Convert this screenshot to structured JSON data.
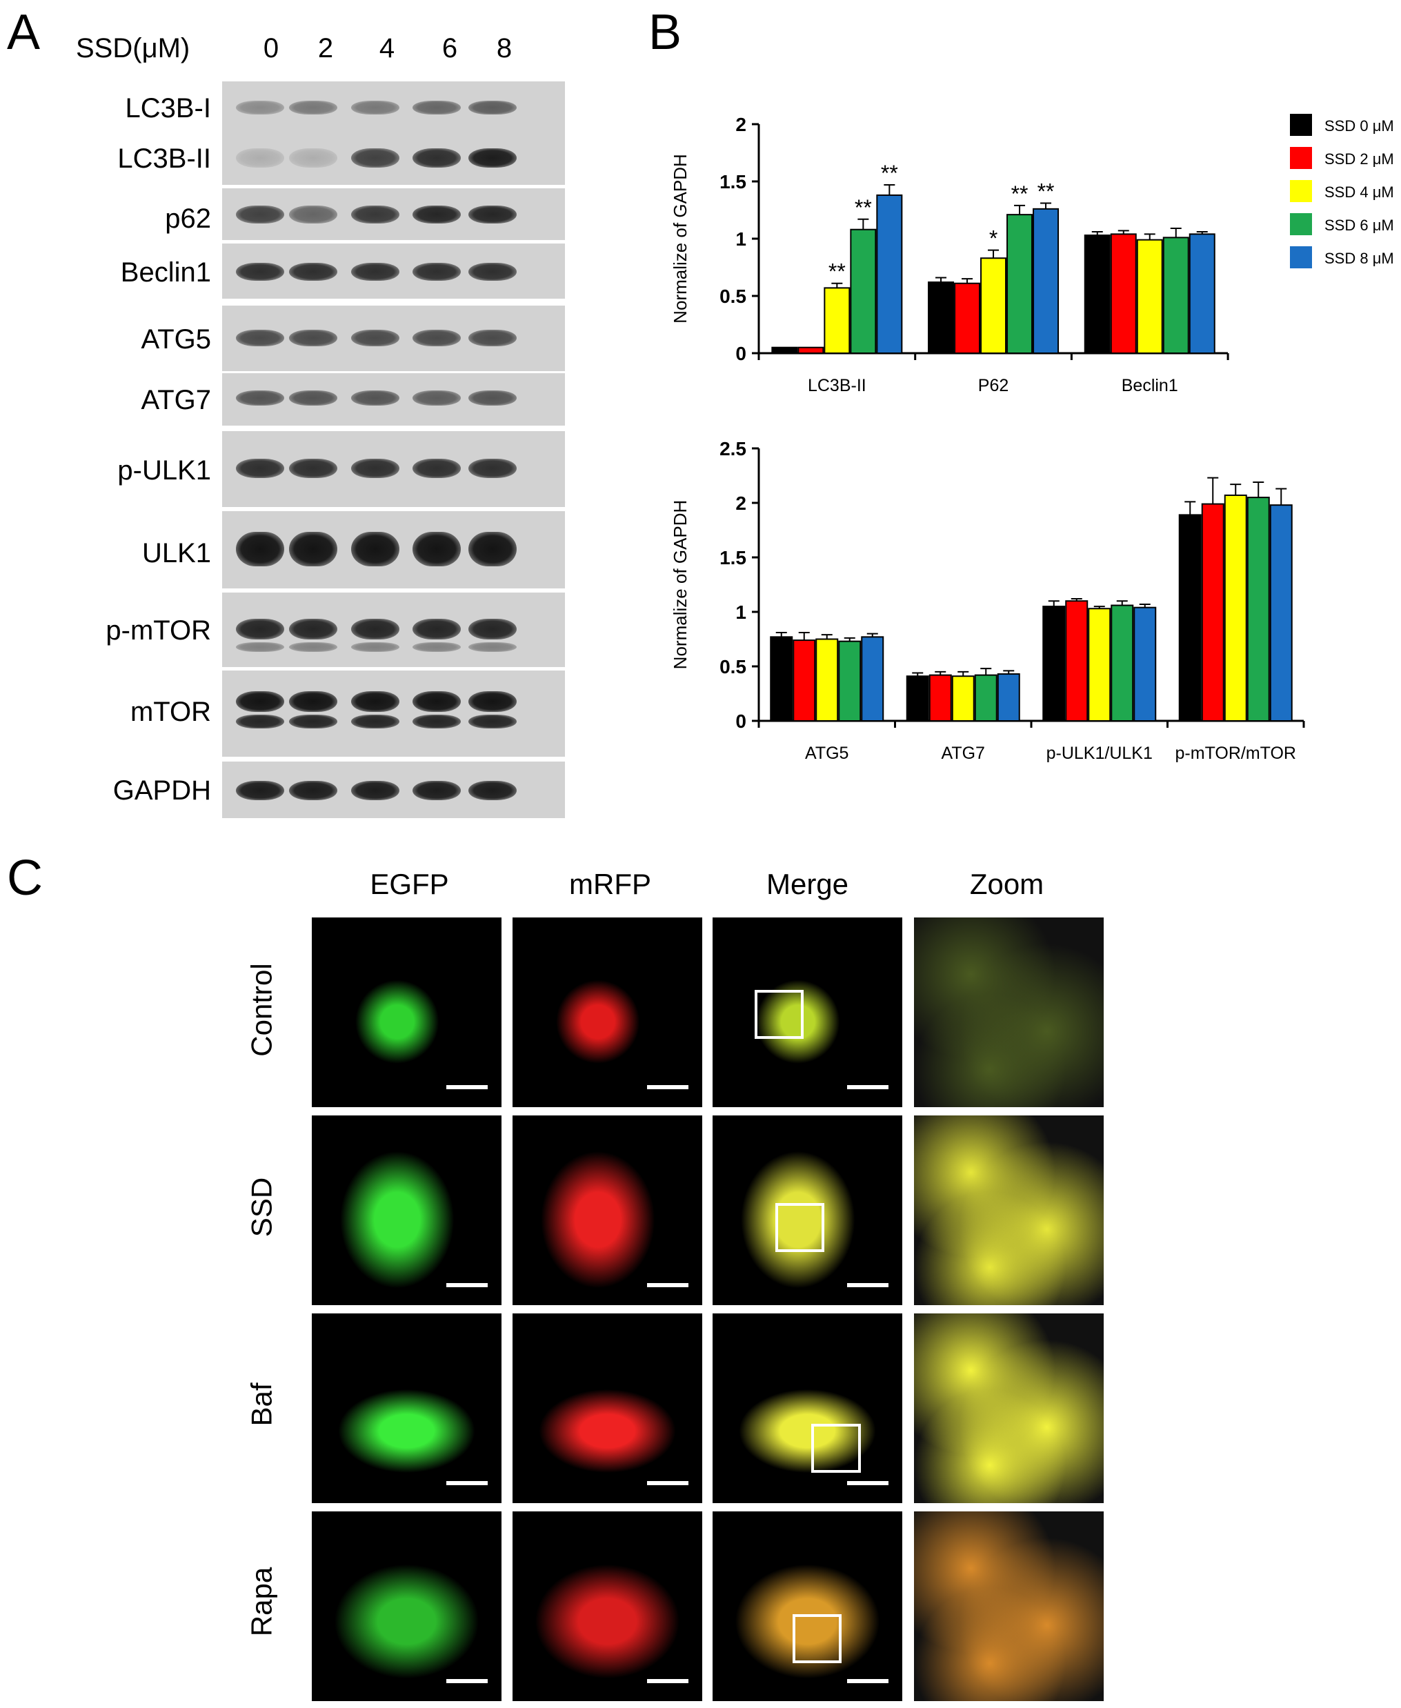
{
  "panels": {
    "a": "A",
    "b": "B",
    "c": "C"
  },
  "blot": {
    "treatment_label": "SSD(μM)",
    "lanes": [
      "0",
      "2",
      "4",
      "6",
      "8"
    ],
    "rows": [
      {
        "label_top": "LC3B-I",
        "label_bottom": "LC3B-II"
      },
      {
        "label": "p62"
      },
      {
        "label": "Beclin1"
      },
      {
        "label": "ATG5"
      },
      {
        "label": "ATG7"
      },
      {
        "label": "p-ULK1"
      },
      {
        "label": "ULK1"
      },
      {
        "label": "p-mTOR"
      },
      {
        "label": "mTOR"
      },
      {
        "label": "GAPDH"
      }
    ]
  },
  "chart_data": [
    {
      "type": "bar",
      "ylabel": "Normalize of GAPDH",
      "ylim": [
        0,
        2
      ],
      "yticks": [
        "0",
        "0.5",
        "1",
        "1.5",
        "2"
      ],
      "categories": [
        "LC3B-II",
        "P62",
        "Beclin1"
      ],
      "series": [
        {
          "name": "SSD 0 μM",
          "color": "#000000",
          "values": [
            0.05,
            0.62,
            1.03
          ],
          "errors": [
            0,
            0.04,
            0.03
          ],
          "sig": [
            "",
            "",
            ""
          ]
        },
        {
          "name": "SSD 2 μM",
          "color": "#ff0000",
          "values": [
            0.05,
            0.61,
            1.04
          ],
          "errors": [
            0,
            0.04,
            0.03
          ],
          "sig": [
            "",
            "",
            ""
          ]
        },
        {
          "name": "SSD 4 μM",
          "color": "#ffff00",
          "values": [
            0.57,
            0.83,
            0.99
          ],
          "errors": [
            0.04,
            0.07,
            0.05
          ],
          "sig": [
            "**",
            "*",
            ""
          ]
        },
        {
          "name": "SSD 6 μM",
          "color": "#1fa84f",
          "values": [
            1.08,
            1.21,
            1.01
          ],
          "errors": [
            0.09,
            0.08,
            0.08
          ],
          "sig": [
            "**",
            "**",
            ""
          ]
        },
        {
          "name": "SSD 8 μM",
          "color": "#1c6fc4",
          "values": [
            1.38,
            1.26,
            1.04
          ],
          "errors": [
            0.09,
            0.05,
            0.02
          ],
          "sig": [
            "**",
            "**",
            ""
          ]
        }
      ],
      "legend": "top-right"
    },
    {
      "type": "bar",
      "ylabel": "Normalize of GAPDH",
      "ylim": [
        0,
        2.5
      ],
      "yticks": [
        "0",
        "0.5",
        "1",
        "1.5",
        "2",
        "2.5"
      ],
      "categories": [
        "ATG5",
        "ATG7",
        "p-ULK1/ULK1",
        "p-mTOR/mTOR"
      ],
      "series": [
        {
          "name": "SSD 0 μM",
          "color": "#000000",
          "values": [
            0.77,
            0.41,
            1.05,
            1.89
          ],
          "errors": [
            0.04,
            0.03,
            0.05,
            0.12
          ]
        },
        {
          "name": "SSD 2 μM",
          "color": "#ff0000",
          "values": [
            0.74,
            0.42,
            1.1,
            1.99
          ],
          "errors": [
            0.07,
            0.03,
            0.02,
            0.24
          ]
        },
        {
          "name": "SSD 4 μM",
          "color": "#ffff00",
          "values": [
            0.75,
            0.41,
            1.03,
            2.07
          ],
          "errors": [
            0.04,
            0.04,
            0.02,
            0.1
          ]
        },
        {
          "name": "SSD 6 μM",
          "color": "#1fa84f",
          "values": [
            0.73,
            0.42,
            1.06,
            2.05
          ],
          "errors": [
            0.03,
            0.06,
            0.04,
            0.14
          ]
        },
        {
          "name": "SSD 8 μM",
          "color": "#1c6fc4",
          "values": [
            0.77,
            0.43,
            1.04,
            1.98
          ],
          "errors": [
            0.03,
            0.03,
            0.03,
            0.15
          ]
        }
      ]
    }
  ],
  "imaging": {
    "columns": [
      "EGFP",
      "mRFP",
      "Merge",
      "Zoom"
    ],
    "rows": [
      "Control",
      "SSD",
      "Baf",
      "Rapa"
    ]
  }
}
